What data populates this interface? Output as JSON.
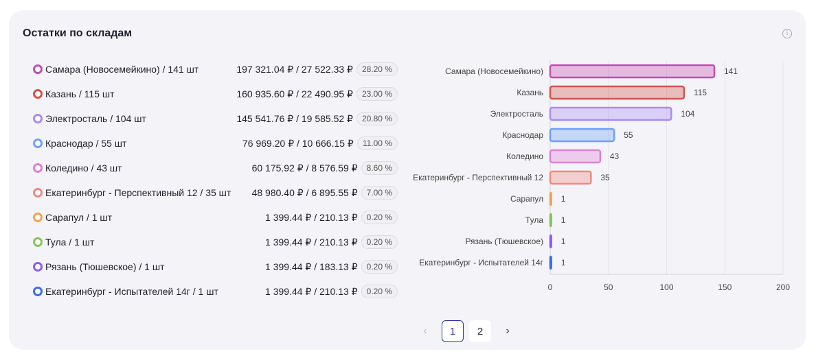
{
  "title": "Остатки по складам",
  "info_icon": "info-icon",
  "items": [
    {
      "label": "Самара (Новосемейкино) / 141 шт",
      "values": "197 321.04 ₽ / 27 522.33 ₽",
      "percent": "28.20 %",
      "color": "#c04fb0"
    },
    {
      "label": "Казань / 115 шт",
      "values": "160 935.60 ₽ / 22 490.95 ₽",
      "percent": "23.00 %",
      "color": "#d4524c"
    },
    {
      "label": "Электросталь / 104 шт",
      "values": "145 541.76 ₽ / 19 585.52 ₽",
      "percent": "20.80 %",
      "color": "#a98cf0"
    },
    {
      "label": "Краснодар / 55 шт",
      "values": "76 969.20 ₽ / 10 666.15 ₽",
      "percent": "11.00 %",
      "color": "#6f9ff5"
    },
    {
      "label": "Коледино / 43 шт",
      "values": "60 175.92 ₽ / 8 576.59 ₽",
      "percent": "8.60 %",
      "color": "#e07fd6"
    },
    {
      "label": "Екатеринбург - Перспективный 12 / 35 шт",
      "values": "48 980.40 ₽ / 6 895.55 ₽",
      "percent": "7.00 %",
      "color": "#ee8a82"
    },
    {
      "label": "Сарапул / 1 шт",
      "values": "1 399.44 ₽ / 210.13 ₽",
      "percent": "0.20 %",
      "color": "#f0a256"
    },
    {
      "label": "Тула / 1 шт",
      "values": "1 399.44 ₽ / 210.13 ₽",
      "percent": "0.20 %",
      "color": "#86c45a"
    },
    {
      "label": "Рязань (Тюшевское) / 1 шт",
      "values": "1 399.44 ₽ / 183.13 ₽",
      "percent": "0.20 %",
      "color": "#8b5cf6"
    },
    {
      "label": "Екатеринбург - Испытателей 14г / 1 шт",
      "values": "1 399.44 ₽ / 210.13 ₽",
      "percent": "0.20 %",
      "color": "#3b6fe8"
    }
  ],
  "chart_data": {
    "type": "bar",
    "orientation": "horizontal",
    "categories": [
      "Самара (Новосемейкино)",
      "Казань",
      "Электросталь",
      "Краснодар",
      "Коледино",
      "Екатеринбург - Перспективный 12",
      "Сарапул",
      "Тула",
      "Рязань (Тюшевское)",
      "Екатеринбург - Испытателей 14г"
    ],
    "values": [
      141,
      115,
      104,
      55,
      43,
      35,
      1,
      1,
      1,
      1
    ],
    "colors": [
      "#c04fb0",
      "#d4524c",
      "#a98cf0",
      "#6f9ff5",
      "#e07fd6",
      "#ee8a82",
      "#f0a256",
      "#86c45a",
      "#8b5cf6",
      "#3b6fe8"
    ],
    "xlim": [
      0,
      200
    ],
    "xticks": [
      0,
      50,
      100,
      150,
      200
    ],
    "grid": true,
    "data_labels": true
  },
  "pagination": {
    "prev": "‹",
    "pages": [
      "1",
      "2"
    ],
    "current": "1",
    "next": "›"
  }
}
